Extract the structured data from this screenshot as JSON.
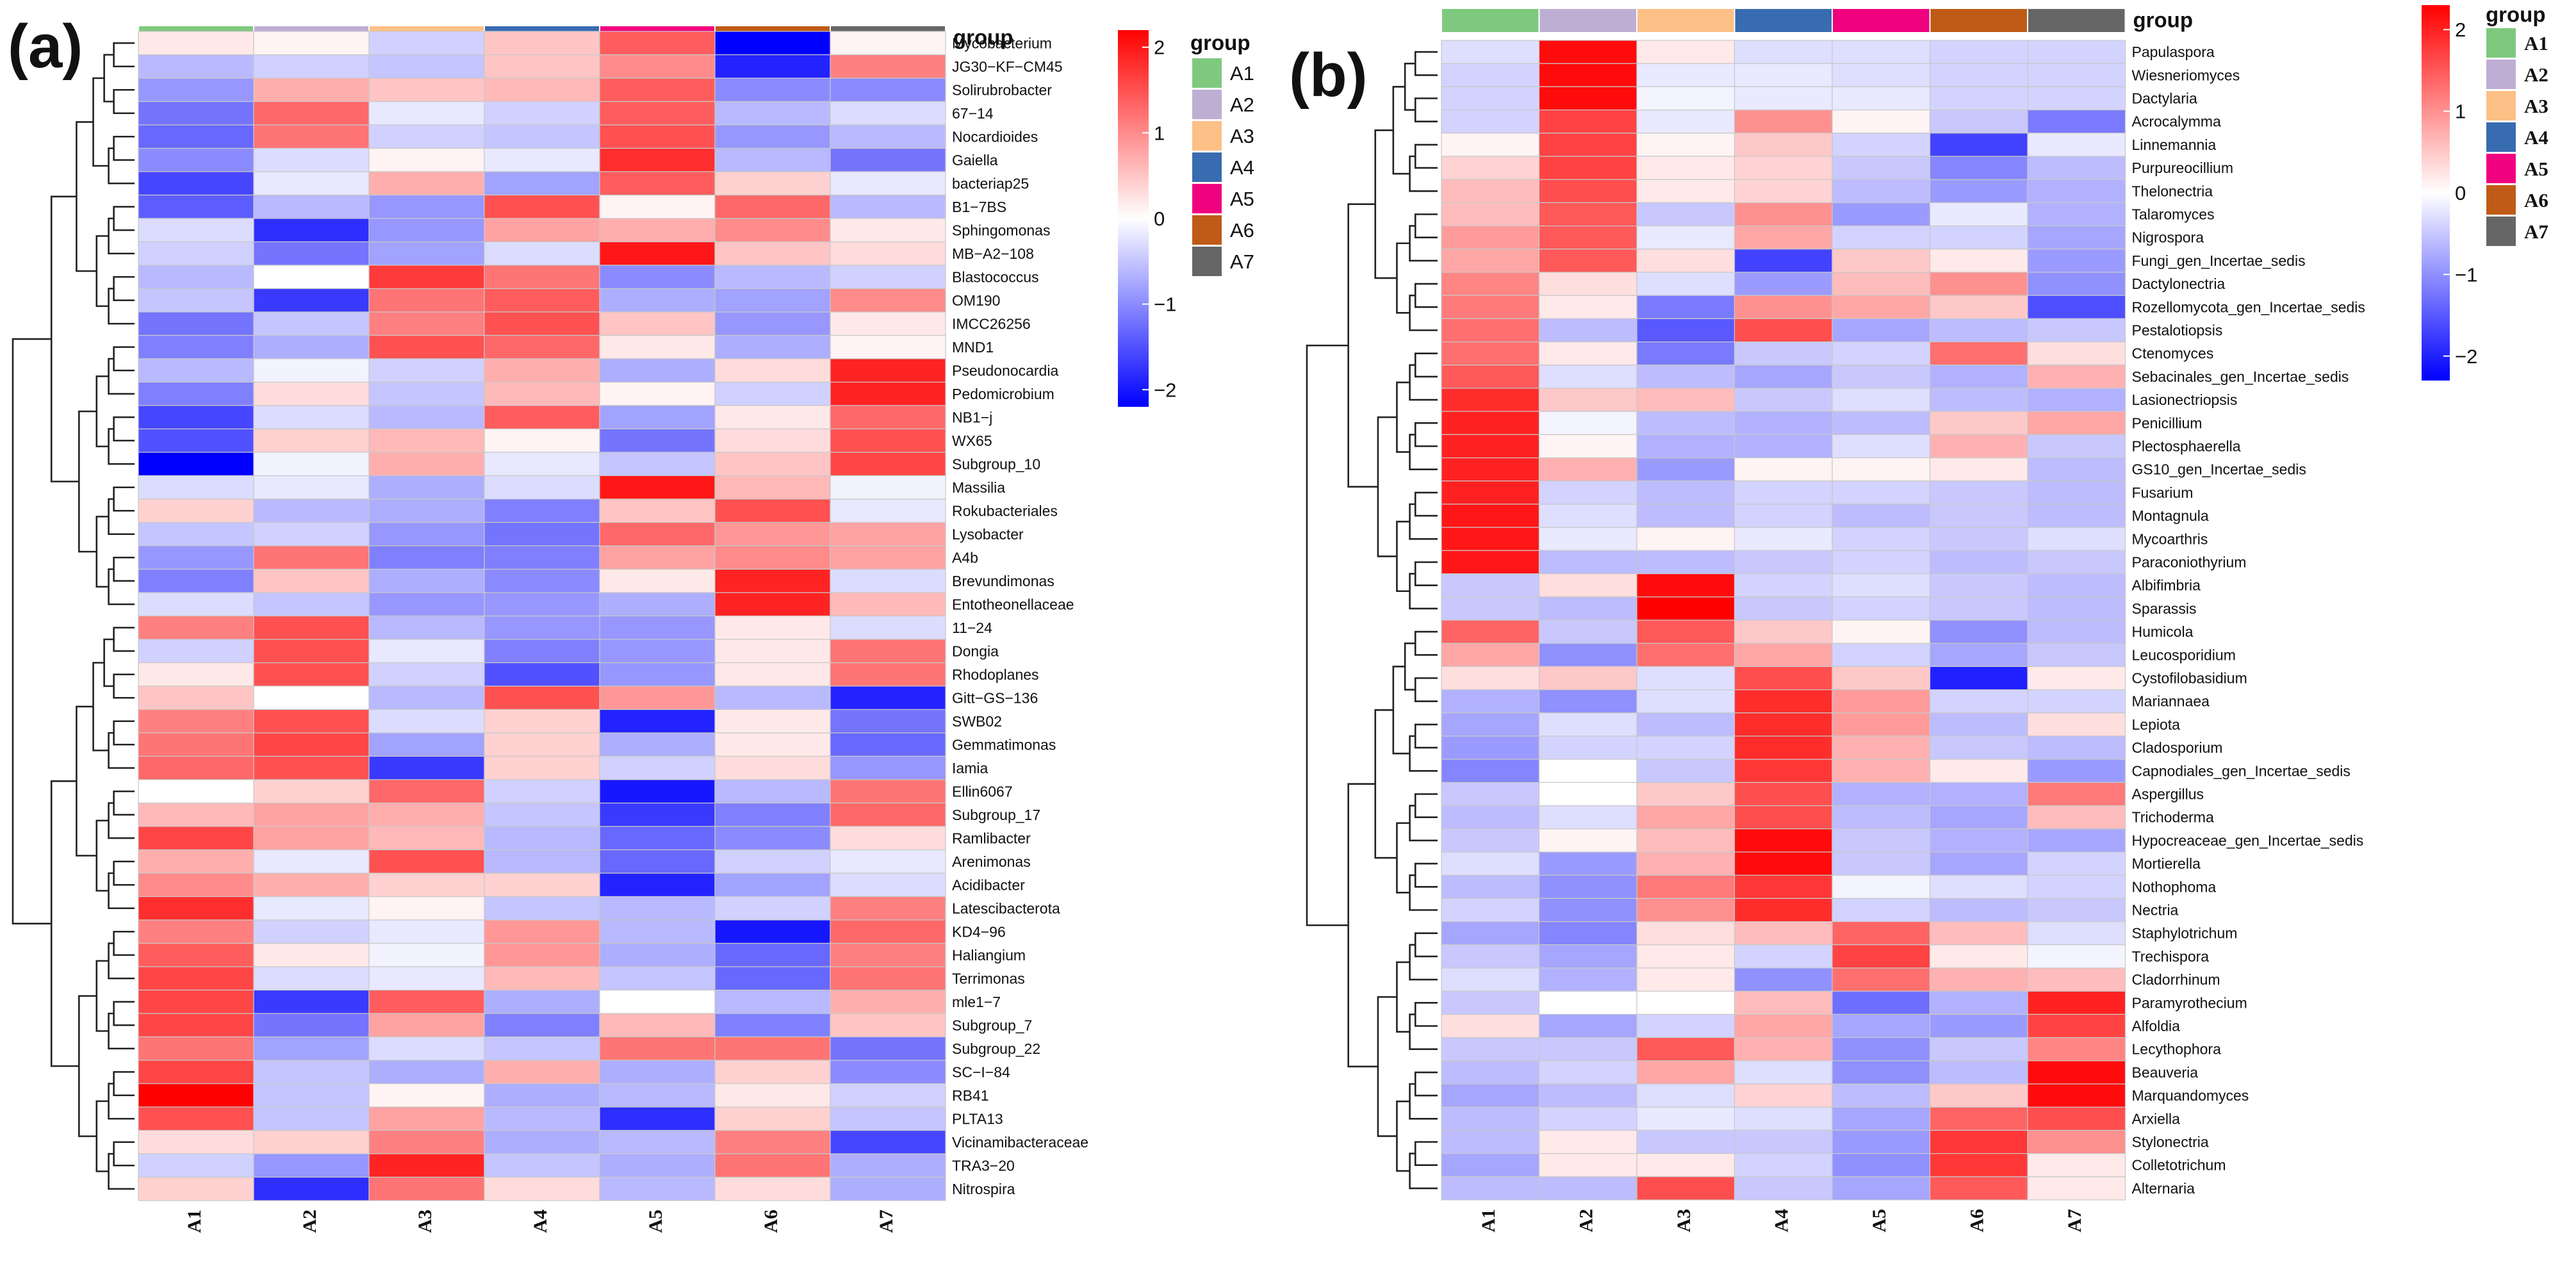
{
  "figure": {
    "group_colors": {
      "A1": "#7fc97f",
      "A2": "#beaed4",
      "A3": "#fdc086",
      "A4": "#386cb0",
      "A5": "#f0027f",
      "A6": "#bf5b17",
      "A7": "#666666"
    },
    "colorbar_colors": {
      "low": "#0000ff",
      "mid": "#ffffff",
      "high": "#ff0000"
    }
  },
  "chart_data": [
    {
      "type": "heatmap",
      "panel_label": "(a)",
      "group_title": "group",
      "legend_title": "group",
      "colorbar": {
        "ticks": [
          "2",
          "1",
          "0",
          "−1",
          "−2"
        ],
        "tick_values": [
          2,
          1,
          0,
          -1,
          -2
        ],
        "range": [
          -2.2,
          2.2
        ]
      },
      "columns": [
        "A1",
        "A2",
        "A3",
        "A4",
        "A5",
        "A6",
        "A7"
      ],
      "rows": [
        "Mycobacterium",
        "JG30−KF−CM45",
        "Solirubrobacter",
        "67−14",
        "Nocardioides",
        "Gaiella",
        "bacteriap25",
        "B1−7BS",
        "Sphingomonas",
        "MB−A2−108",
        "Blastococcus",
        "OM190",
        "IMCC26256",
        "MND1",
        "Pseudonocardia",
        "Pedomicrobium",
        "NB1−j",
        "WX65",
        "Subgroup_10",
        "Massilia",
        "Rokubacteriales",
        "Lysobacter",
        "A4b",
        "Brevundimonas",
        "Entotheonellaceae",
        "11−24",
        "Dongia",
        "Rhodoplanes",
        "Gitt−GS−136",
        "SWB02",
        "Gemmatimonas",
        "Iamia",
        "Ellin6067",
        "Subgroup_17",
        "Ramlibacter",
        "Arenimonas",
        "Acidibacter",
        "Latescibacterota",
        "KD4−96",
        "Haliangium",
        "Terrimonas",
        "mle1−7",
        "Subgroup_7",
        "Subgroup_22",
        "SC−I−84",
        "RB41",
        "PLTA13",
        "Vicinamibacteraceae",
        "TRA3−20",
        "Nitrospira"
      ],
      "values": [
        [
          0.2,
          0.1,
          -0.4,
          0.5,
          1.4,
          -2.2,
          0.1
        ],
        [
          -0.6,
          -0.4,
          -0.5,
          0.5,
          1.0,
          -1.9,
          1.1
        ],
        [
          -0.9,
          0.7,
          0.5,
          0.6,
          1.4,
          -1.0,
          -1.0
        ],
        [
          -1.2,
          1.3,
          -0.2,
          -0.4,
          1.4,
          -0.6,
          -0.3
        ],
        [
          -1.3,
          1.2,
          -0.4,
          -0.5,
          1.5,
          -0.9,
          -0.6
        ],
        [
          -1.0,
          -0.3,
          0.1,
          -0.2,
          1.8,
          -0.6,
          -1.2
        ],
        [
          -1.6,
          -0.2,
          0.7,
          -0.8,
          1.4,
          0.4,
          -0.2
        ],
        [
          -1.4,
          -0.6,
          -0.9,
          1.5,
          0.1,
          1.3,
          -0.6
        ],
        [
          -0.3,
          -1.8,
          -0.9,
          0.8,
          0.7,
          1.0,
          0.2
        ],
        [
          -0.4,
          -1.2,
          -0.8,
          -0.3,
          2.0,
          0.5,
          0.3
        ],
        [
          -0.6,
          0.0,
          1.7,
          1.2,
          -1.0,
          -0.6,
          -0.4
        ],
        [
          -0.5,
          -1.7,
          1.2,
          1.4,
          -0.7,
          -0.8,
          1.0
        ],
        [
          -1.2,
          -0.5,
          1.1,
          1.5,
          0.5,
          -0.9,
          0.2
        ],
        [
          -1.1,
          -0.7,
          1.5,
          1.3,
          0.2,
          -0.7,
          0.1
        ],
        [
          -0.6,
          -0.1,
          -0.4,
          0.7,
          -0.7,
          0.3,
          1.9
        ],
        [
          -1.1,
          0.3,
          -0.5,
          0.6,
          0.1,
          -0.4,
          1.9
        ],
        [
          -1.6,
          -0.3,
          -0.6,
          1.4,
          -0.8,
          0.2,
          1.3
        ],
        [
          -1.5,
          0.4,
          0.6,
          0.1,
          -1.2,
          0.3,
          1.5
        ],
        [
          -2.2,
          -0.1,
          0.7,
          -0.2,
          -0.5,
          0.5,
          1.6
        ],
        [
          -0.3,
          -0.2,
          -0.7,
          -0.3,
          2.0,
          0.6,
          -0.1
        ],
        [
          0.4,
          -0.6,
          -0.7,
          -1.1,
          0.5,
          1.5,
          -0.2
        ],
        [
          -0.5,
          -0.4,
          -0.9,
          -1.2,
          1.3,
          0.9,
          0.8
        ],
        [
          -0.9,
          1.2,
          -1.1,
          -1.1,
          0.8,
          1.0,
          0.8
        ],
        [
          -1.1,
          0.5,
          -0.7,
          -1.0,
          0.2,
          1.9,
          -0.3
        ],
        [
          -0.3,
          -0.5,
          -0.9,
          -0.9,
          -0.7,
          1.9,
          0.6
        ],
        [
          1.1,
          1.5,
          -0.6,
          -0.9,
          -0.9,
          0.2,
          -0.3
        ],
        [
          -0.4,
          1.5,
          -0.2,
          -1.1,
          -0.9,
          0.2,
          1.2
        ],
        [
          0.2,
          1.5,
          -0.4,
          -1.5,
          -0.9,
          0.2,
          1.2
        ],
        [
          0.5,
          0.0,
          -0.6,
          1.5,
          0.9,
          -0.6,
          -1.9
        ],
        [
          1.1,
          1.5,
          -0.3,
          0.4,
          -1.9,
          0.2,
          -1.2
        ],
        [
          1.2,
          1.6,
          -0.8,
          0.4,
          -0.7,
          0.2,
          -1.3
        ],
        [
          1.3,
          1.5,
          -1.7,
          0.4,
          -0.4,
          0.3,
          -0.9
        ],
        [
          0.0,
          0.4,
          1.3,
          -0.4,
          -2.0,
          -0.6,
          1.2
        ],
        [
          0.6,
          0.8,
          0.7,
          -0.5,
          -1.7,
          -1.1,
          1.3
        ],
        [
          1.6,
          0.8,
          0.6,
          -0.6,
          -1.3,
          -1.0,
          0.3
        ],
        [
          0.7,
          -0.2,
          1.5,
          -0.6,
          -1.3,
          -0.4,
          -0.2
        ],
        [
          1.0,
          0.7,
          0.4,
          0.4,
          -1.9,
          -0.8,
          -0.3
        ],
        [
          1.8,
          -0.2,
          0.1,
          -0.5,
          -0.6,
          -0.4,
          1.1
        ],
        [
          1.1,
          -0.4,
          -0.2,
          0.9,
          -0.6,
          -2.0,
          1.3
        ],
        [
          1.4,
          0.2,
          -0.1,
          0.9,
          -0.7,
          -1.3,
          1.1
        ],
        [
          1.6,
          -0.3,
          -0.2,
          0.6,
          -0.5,
          -1.3,
          1.2
        ],
        [
          1.6,
          -1.7,
          1.4,
          -0.7,
          0.0,
          -0.6,
          0.7
        ],
        [
          1.6,
          -1.2,
          0.8,
          -1.1,
          0.6,
          -1.1,
          0.5
        ],
        [
          1.2,
          -0.8,
          -0.3,
          -0.5,
          1.2,
          1.2,
          -1.2
        ],
        [
          1.6,
          -0.5,
          -0.7,
          0.7,
          -0.7,
          0.4,
          -1.0
        ],
        [
          2.2,
          -0.5,
          0.1,
          -0.7,
          -0.6,
          0.2,
          -0.4
        ],
        [
          1.5,
          -0.5,
          0.8,
          -0.6,
          -1.8,
          0.4,
          -0.5
        ],
        [
          0.3,
          0.4,
          1.1,
          -0.7,
          -0.6,
          1.1,
          -1.6
        ],
        [
          -0.4,
          -0.9,
          1.9,
          -0.5,
          -0.7,
          1.2,
          -0.7
        ],
        [
          0.4,
          -1.8,
          1.2,
          0.3,
          -0.6,
          0.3,
          -0.7
        ]
      ]
    },
    {
      "type": "heatmap",
      "panel_label": "(b)",
      "group_title": "group",
      "legend_title": "group",
      "colorbar": {
        "ticks": [
          "2",
          "1",
          "0",
          "−1",
          "−2"
        ],
        "tick_values": [
          2,
          1,
          0,
          -1,
          -2
        ],
        "range": [
          -2.3,
          2.3
        ]
      },
      "columns": [
        "A1",
        "A2",
        "A3",
        "A4",
        "A5",
        "A6",
        "A7"
      ],
      "rows": [
        "Papulaspora",
        "Wiesneriomyces",
        "Dactylaria",
        "Acrocalymma",
        "Linnemannia",
        "Purpureocillium",
        "Thelonectria",
        "Talaromyces",
        "Nigrospora",
        "Fungi_gen_Incertae_sedis",
        "Dactylonectria",
        "Rozellomycota_gen_Incertae_sedis",
        "Pestalotiopsis",
        "Ctenomyces",
        "Sebacinales_gen_Incertae_sedis",
        "Lasionectriopsis",
        "Penicillium",
        "Plectosphaerella",
        "GS10_gen_Incertae_sedis",
        "Fusarium",
        "Montagnula",
        "Mycoarthris",
        "Paraconiothyrium",
        "Albifimbria",
        "Sparassis",
        "Humicola",
        "Leucosporidium",
        "Cystofilobasidium",
        "Mariannaea",
        "Lepiota",
        "Cladosporium",
        "Capnodiales_gen_Incertae_sedis",
        "Aspergillus",
        "Trichoderma",
        "Hypocreaceae_gen_Incertae_sedis",
        "Mortierella",
        "Nothophoma",
        "Nectria",
        "Staphylotrichum",
        "Trechispora",
        "Cladorrhinum",
        "Paramyrothecium",
        "Alfoldia",
        "Lecythophora",
        "Beauveria",
        "Marquandomyces",
        "Arxiella",
        "Stylonectria",
        "Colletotrichum",
        "Alternaria"
      ],
      "values": [
        [
          -0.3,
          2.2,
          0.2,
          -0.3,
          -0.3,
          -0.4,
          -0.4
        ],
        [
          -0.4,
          2.2,
          -0.2,
          -0.2,
          -0.3,
          -0.4,
          -0.4
        ],
        [
          -0.4,
          2.2,
          -0.1,
          -0.2,
          -0.2,
          -0.4,
          -0.4
        ],
        [
          -0.4,
          1.7,
          -0.2,
          1.0,
          0.1,
          -0.5,
          -1.2
        ],
        [
          0.1,
          1.7,
          0.1,
          0.5,
          -0.4,
          -1.7,
          -0.2
        ],
        [
          0.4,
          1.7,
          0.2,
          0.4,
          -0.5,
          -1.1,
          -0.6
        ],
        [
          0.6,
          1.6,
          0.2,
          0.4,
          -0.6,
          -0.9,
          -0.7
        ],
        [
          0.6,
          1.5,
          -0.5,
          1.0,
          -0.9,
          -0.2,
          -0.7
        ],
        [
          0.9,
          1.5,
          -0.2,
          0.8,
          -0.4,
          -0.4,
          -0.8
        ],
        [
          0.8,
          1.5,
          0.3,
          -1.7,
          0.5,
          0.2,
          -0.9
        ],
        [
          1.1,
          0.3,
          -0.3,
          -0.9,
          0.6,
          1.0,
          -1.0
        ],
        [
          1.2,
          0.2,
          -1.2,
          1.0,
          0.8,
          0.5,
          -1.6
        ],
        [
          1.3,
          -0.6,
          -1.5,
          1.6,
          -0.8,
          -0.6,
          -0.5
        ],
        [
          1.3,
          0.2,
          -1.2,
          -0.5,
          -0.4,
          1.3,
          0.3
        ],
        [
          1.5,
          -0.3,
          -0.6,
          -0.8,
          -0.5,
          -0.7,
          0.7
        ],
        [
          1.9,
          0.5,
          0.6,
          -0.5,
          -0.3,
          -0.6,
          -0.7
        ],
        [
          2.0,
          -0.1,
          -0.6,
          -0.7,
          -0.6,
          0.5,
          0.8
        ],
        [
          2.0,
          0.1,
          -0.7,
          -0.7,
          -0.3,
          0.7,
          -0.5
        ],
        [
          2.0,
          0.7,
          -0.9,
          0.1,
          0.1,
          0.2,
          -0.6
        ],
        [
          2.0,
          -0.4,
          -0.6,
          -0.4,
          -0.4,
          -0.5,
          -0.6
        ],
        [
          2.1,
          -0.3,
          -0.6,
          -0.4,
          -0.6,
          -0.5,
          -0.6
        ],
        [
          2.1,
          -0.2,
          0.1,
          -0.2,
          -0.4,
          -0.5,
          -0.3
        ],
        [
          2.1,
          -0.6,
          -0.6,
          -0.5,
          -0.4,
          -0.6,
          -0.5
        ],
        [
          -0.5,
          0.3,
          2.2,
          -0.4,
          -0.3,
          -0.5,
          -0.6
        ],
        [
          -0.5,
          -0.6,
          2.3,
          -0.5,
          -0.4,
          -0.5,
          -0.6
        ],
        [
          1.4,
          -0.5,
          1.5,
          0.5,
          0.1,
          -1.0,
          -0.6
        ],
        [
          0.8,
          -1.0,
          1.3,
          0.8,
          -0.4,
          -0.8,
          -0.5
        ],
        [
          0.3,
          0.5,
          -0.3,
          1.6,
          0.5,
          -2.0,
          0.2
        ],
        [
          -0.7,
          -1.0,
          -0.3,
          1.9,
          0.9,
          -0.4,
          -0.4
        ],
        [
          -0.8,
          -0.3,
          -0.6,
          1.9,
          0.9,
          -0.6,
          0.3
        ],
        [
          -0.9,
          -0.4,
          -0.4,
          1.9,
          0.7,
          -0.5,
          -0.6
        ],
        [
          -1.1,
          0.0,
          -0.5,
          1.8,
          0.7,
          0.2,
          -0.9
        ],
        [
          -0.5,
          0.0,
          0.5,
          1.6,
          -0.7,
          -0.7,
          1.2
        ],
        [
          -0.6,
          -0.3,
          0.8,
          1.6,
          -0.6,
          -0.8,
          0.6
        ],
        [
          -0.5,
          0.1,
          0.6,
          2.2,
          -0.5,
          -0.7,
          -0.8
        ],
        [
          -0.3,
          -0.9,
          0.7,
          2.2,
          -0.5,
          -0.8,
          -0.4
        ],
        [
          -0.6,
          -1.0,
          1.2,
          1.8,
          -0.1,
          -0.3,
          -0.4
        ],
        [
          -0.4,
          -1.0,
          1.0,
          1.9,
          -0.4,
          -0.6,
          -0.5
        ],
        [
          -0.8,
          -1.1,
          0.3,
          0.6,
          1.4,
          0.6,
          -0.3
        ],
        [
          -0.5,
          -0.8,
          0.2,
          -0.4,
          1.7,
          0.2,
          -0.1
        ],
        [
          -0.3,
          -0.7,
          0.2,
          -1.0,
          1.3,
          0.7,
          0.6
        ],
        [
          -0.5,
          0.0,
          0.0,
          0.6,
          -1.3,
          -0.7,
          2.0
        ],
        [
          0.3,
          -0.8,
          -0.4,
          0.8,
          -0.8,
          -0.9,
          1.7
        ],
        [
          -0.5,
          -0.5,
          1.5,
          0.7,
          -1.0,
          -0.5,
          1.1
        ],
        [
          -0.6,
          -0.4,
          0.8,
          -0.3,
          -1.0,
          -0.6,
          2.2
        ],
        [
          -0.8,
          -0.6,
          -0.3,
          0.4,
          -0.6,
          0.5,
          2.2
        ],
        [
          -0.6,
          -0.4,
          -0.2,
          -0.3,
          -0.8,
          1.4,
          1.6
        ],
        [
          -0.6,
          0.2,
          -0.5,
          -0.5,
          -0.9,
          1.8,
          1.0
        ],
        [
          -0.8,
          0.2,
          0.2,
          -0.4,
          -1.0,
          1.8,
          0.2
        ],
        [
          -0.6,
          -0.6,
          1.6,
          -0.5,
          -0.8,
          1.5,
          0.2
        ]
      ]
    }
  ]
}
